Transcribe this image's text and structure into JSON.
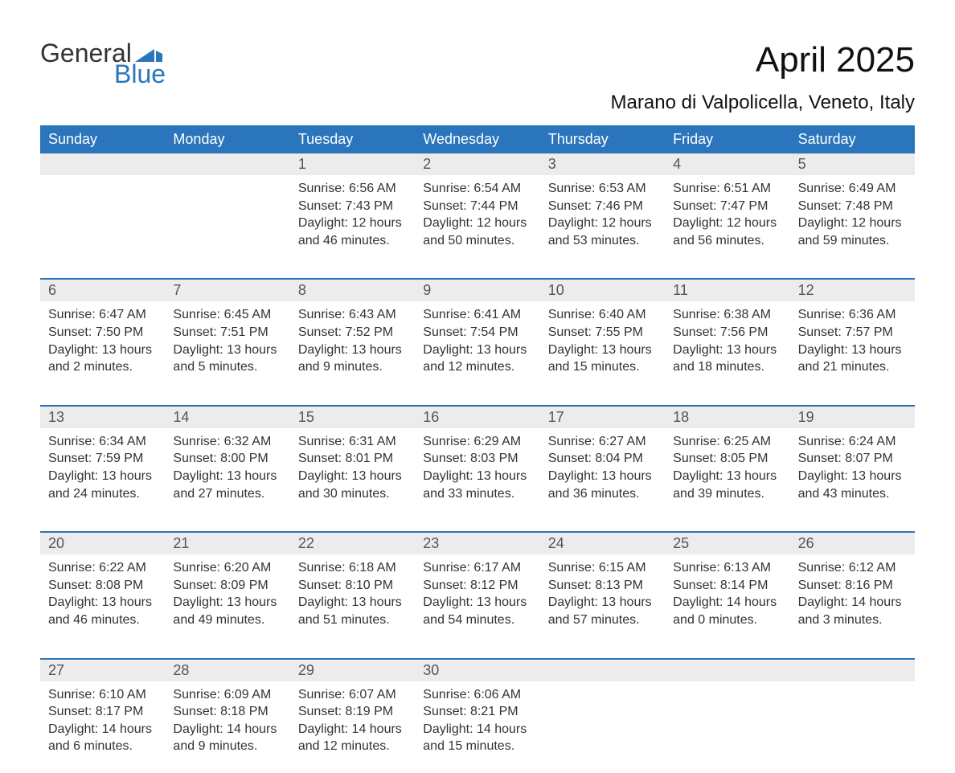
{
  "colors": {
    "header_bg": "#2a75bb",
    "header_text": "#ffffff",
    "daynum_bg": "#ececec",
    "daynum_text": "#555555",
    "body_text": "#333333",
    "week_divider": "#2a75bb",
    "page_bg": "#ffffff",
    "logo_blue": "#2a75bb"
  },
  "typography": {
    "title_fontsize": 44,
    "location_fontsize": 24,
    "dayname_fontsize": 18,
    "daynum_fontsize": 18,
    "cell_fontsize": 16,
    "logo_fontsize": 32
  },
  "logo": {
    "text1": "General",
    "text2": "Blue"
  },
  "title": "April 2025",
  "location": "Marano di Valpolicella, Veneto, Italy",
  "daynames": [
    "Sunday",
    "Monday",
    "Tuesday",
    "Wednesday",
    "Thursday",
    "Friday",
    "Saturday"
  ],
  "weeks": [
    {
      "nums": [
        "",
        "",
        "1",
        "2",
        "3",
        "4",
        "5"
      ],
      "cells": [
        {
          "sunrise": "",
          "sunset": "",
          "daylight": ""
        },
        {
          "sunrise": "",
          "sunset": "",
          "daylight": ""
        },
        {
          "sunrise": "Sunrise: 6:56 AM",
          "sunset": "Sunset: 7:43 PM",
          "daylight": "Daylight: 12 hours and 46 minutes."
        },
        {
          "sunrise": "Sunrise: 6:54 AM",
          "sunset": "Sunset: 7:44 PM",
          "daylight": "Daylight: 12 hours and 50 minutes."
        },
        {
          "sunrise": "Sunrise: 6:53 AM",
          "sunset": "Sunset: 7:46 PM",
          "daylight": "Daylight: 12 hours and 53 minutes."
        },
        {
          "sunrise": "Sunrise: 6:51 AM",
          "sunset": "Sunset: 7:47 PM",
          "daylight": "Daylight: 12 hours and 56 minutes."
        },
        {
          "sunrise": "Sunrise: 6:49 AM",
          "sunset": "Sunset: 7:48 PM",
          "daylight": "Daylight: 12 hours and 59 minutes."
        }
      ]
    },
    {
      "nums": [
        "6",
        "7",
        "8",
        "9",
        "10",
        "11",
        "12"
      ],
      "cells": [
        {
          "sunrise": "Sunrise: 6:47 AM",
          "sunset": "Sunset: 7:50 PM",
          "daylight": "Daylight: 13 hours and 2 minutes."
        },
        {
          "sunrise": "Sunrise: 6:45 AM",
          "sunset": "Sunset: 7:51 PM",
          "daylight": "Daylight: 13 hours and 5 minutes."
        },
        {
          "sunrise": "Sunrise: 6:43 AM",
          "sunset": "Sunset: 7:52 PM",
          "daylight": "Daylight: 13 hours and 9 minutes."
        },
        {
          "sunrise": "Sunrise: 6:41 AM",
          "sunset": "Sunset: 7:54 PM",
          "daylight": "Daylight: 13 hours and 12 minutes."
        },
        {
          "sunrise": "Sunrise: 6:40 AM",
          "sunset": "Sunset: 7:55 PM",
          "daylight": "Daylight: 13 hours and 15 minutes."
        },
        {
          "sunrise": "Sunrise: 6:38 AM",
          "sunset": "Sunset: 7:56 PM",
          "daylight": "Daylight: 13 hours and 18 minutes."
        },
        {
          "sunrise": "Sunrise: 6:36 AM",
          "sunset": "Sunset: 7:57 PM",
          "daylight": "Daylight: 13 hours and 21 minutes."
        }
      ]
    },
    {
      "nums": [
        "13",
        "14",
        "15",
        "16",
        "17",
        "18",
        "19"
      ],
      "cells": [
        {
          "sunrise": "Sunrise: 6:34 AM",
          "sunset": "Sunset: 7:59 PM",
          "daylight": "Daylight: 13 hours and 24 minutes."
        },
        {
          "sunrise": "Sunrise: 6:32 AM",
          "sunset": "Sunset: 8:00 PM",
          "daylight": "Daylight: 13 hours and 27 minutes."
        },
        {
          "sunrise": "Sunrise: 6:31 AM",
          "sunset": "Sunset: 8:01 PM",
          "daylight": "Daylight: 13 hours and 30 minutes."
        },
        {
          "sunrise": "Sunrise: 6:29 AM",
          "sunset": "Sunset: 8:03 PM",
          "daylight": "Daylight: 13 hours and 33 minutes."
        },
        {
          "sunrise": "Sunrise: 6:27 AM",
          "sunset": "Sunset: 8:04 PM",
          "daylight": "Daylight: 13 hours and 36 minutes."
        },
        {
          "sunrise": "Sunrise: 6:25 AM",
          "sunset": "Sunset: 8:05 PM",
          "daylight": "Daylight: 13 hours and 39 minutes."
        },
        {
          "sunrise": "Sunrise: 6:24 AM",
          "sunset": "Sunset: 8:07 PM",
          "daylight": "Daylight: 13 hours and 43 minutes."
        }
      ]
    },
    {
      "nums": [
        "20",
        "21",
        "22",
        "23",
        "24",
        "25",
        "26"
      ],
      "cells": [
        {
          "sunrise": "Sunrise: 6:22 AM",
          "sunset": "Sunset: 8:08 PM",
          "daylight": "Daylight: 13 hours and 46 minutes."
        },
        {
          "sunrise": "Sunrise: 6:20 AM",
          "sunset": "Sunset: 8:09 PM",
          "daylight": "Daylight: 13 hours and 49 minutes."
        },
        {
          "sunrise": "Sunrise: 6:18 AM",
          "sunset": "Sunset: 8:10 PM",
          "daylight": "Daylight: 13 hours and 51 minutes."
        },
        {
          "sunrise": "Sunrise: 6:17 AM",
          "sunset": "Sunset: 8:12 PM",
          "daylight": "Daylight: 13 hours and 54 minutes."
        },
        {
          "sunrise": "Sunrise: 6:15 AM",
          "sunset": "Sunset: 8:13 PM",
          "daylight": "Daylight: 13 hours and 57 minutes."
        },
        {
          "sunrise": "Sunrise: 6:13 AM",
          "sunset": "Sunset: 8:14 PM",
          "daylight": "Daylight: 14 hours and 0 minutes."
        },
        {
          "sunrise": "Sunrise: 6:12 AM",
          "sunset": "Sunset: 8:16 PM",
          "daylight": "Daylight: 14 hours and 3 minutes."
        }
      ]
    },
    {
      "nums": [
        "27",
        "28",
        "29",
        "30",
        "",
        "",
        ""
      ],
      "cells": [
        {
          "sunrise": "Sunrise: 6:10 AM",
          "sunset": "Sunset: 8:17 PM",
          "daylight": "Daylight: 14 hours and 6 minutes."
        },
        {
          "sunrise": "Sunrise: 6:09 AM",
          "sunset": "Sunset: 8:18 PM",
          "daylight": "Daylight: 14 hours and 9 minutes."
        },
        {
          "sunrise": "Sunrise: 6:07 AM",
          "sunset": "Sunset: 8:19 PM",
          "daylight": "Daylight: 14 hours and 12 minutes."
        },
        {
          "sunrise": "Sunrise: 6:06 AM",
          "sunset": "Sunset: 8:21 PM",
          "daylight": "Daylight: 14 hours and 15 minutes."
        },
        {
          "sunrise": "",
          "sunset": "",
          "daylight": ""
        },
        {
          "sunrise": "",
          "sunset": "",
          "daylight": ""
        },
        {
          "sunrise": "",
          "sunset": "",
          "daylight": ""
        }
      ]
    }
  ]
}
